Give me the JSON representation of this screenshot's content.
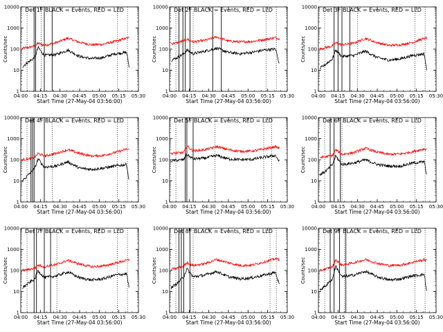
{
  "chart_data": {
    "type": "line",
    "layout": "3x3 grid of detector lightcurves",
    "x_ticks": [
      "04:00",
      "04:15",
      "04:30",
      "04:45",
      "05:00",
      "05:15",
      "05:30"
    ],
    "x_range_hours": [
      4.0,
      5.5
    ],
    "y_scale": "log",
    "ylim": [
      1,
      10000
    ],
    "y_ticks": [
      "1",
      "10",
      "100",
      "1000",
      "10000"
    ],
    "ylabel": "Counts/sec",
    "xlabel": "Start Time (27-May-04 03:56:00)",
    "series_colors": {
      "events": "#000000",
      "lld": "#ff0000"
    },
    "series_legend_text": "BLACK = Events, RED = LLD",
    "panels": [
      {
        "title": "Det 1F BLACK = Events, RED = LLD",
        "x": [
          4.02,
          4.1,
          4.18,
          4.22,
          4.3,
          4.45,
          4.6,
          4.75,
          4.9,
          5.05,
          5.2,
          5.35,
          5.38
        ],
        "events": [
          15,
          25,
          40,
          120,
          50,
          55,
          90,
          45,
          35,
          40,
          60,
          70,
          15
        ],
        "lld": [
          110,
          120,
          140,
          190,
          150,
          200,
          330,
          210,
          160,
          170,
          230,
          330,
          340
        ],
        "solid_markers": [
          4.17,
          4.19,
          4.3,
          4.4
        ],
        "dotted_markers": [
          4.08,
          4.26,
          5.23,
          5.36
        ]
      },
      {
        "title": "Det 2F BLACK = Events, RED = LLD",
        "x": [
          4.02,
          4.1,
          4.18,
          4.22,
          4.3,
          4.45,
          4.6,
          4.75,
          4.9,
          5.05,
          5.2,
          5.35,
          5.4
        ],
        "events": [
          30,
          40,
          60,
          90,
          60,
          80,
          110,
          70,
          60,
          70,
          90,
          100,
          20
        ],
        "lld": [
          180,
          200,
          250,
          300,
          220,
          260,
          380,
          240,
          220,
          230,
          280,
          350,
          300
        ],
        "solid_markers": [
          4.12,
          4.17,
          4.2,
          4.26,
          4.55,
          4.66
        ],
        "dotted_markers": [
          4.08,
          4.3,
          5.23,
          5.36
        ]
      },
      {
        "title": "Det 3F BLACK = Events, RED = LLD",
        "x": [
          4.02,
          4.1,
          4.18,
          4.22,
          4.3,
          4.45,
          4.6,
          4.75,
          4.9,
          5.05,
          5.2,
          5.35,
          5.38
        ],
        "events": [
          12,
          20,
          35,
          90,
          45,
          50,
          80,
          40,
          30,
          35,
          50,
          60,
          10
        ],
        "lld": [
          100,
          120,
          140,
          200,
          160,
          190,
          320,
          200,
          150,
          160,
          210,
          320,
          330
        ],
        "solid_markers": [
          4.2,
          4.25,
          4.3,
          4.4
        ],
        "dotted_markers": [
          4.08,
          4.5,
          5.23,
          5.36
        ]
      },
      {
        "title": "Det 4F BLACK = Events, RED = LLD",
        "x": [
          4.02,
          4.1,
          4.18,
          4.22,
          4.3,
          4.45,
          4.6,
          4.75,
          4.9,
          5.05,
          5.2,
          5.35,
          5.38
        ],
        "events": [
          10,
          20,
          40,
          110,
          45,
          50,
          80,
          40,
          35,
          40,
          50,
          60,
          10
        ],
        "lld": [
          100,
          110,
          130,
          200,
          150,
          200,
          300,
          200,
          150,
          160,
          220,
          320,
          300
        ],
        "solid_markers": [
          4.13,
          4.15,
          4.17,
          4.3
        ],
        "dotted_markers": [
          4.08,
          4.4,
          5.23,
          5.36
        ]
      },
      {
        "title": "Det 5F BLACK = Events, RED = LLD",
        "x": [
          4.02,
          4.1,
          4.18,
          4.22,
          4.3,
          4.45,
          4.6,
          4.75,
          4.9,
          5.05,
          5.2,
          5.35,
          5.4
        ],
        "events": [
          90,
          95,
          100,
          180,
          110,
          120,
          160,
          110,
          100,
          105,
          130,
          160,
          80
        ],
        "lld": [
          200,
          210,
          220,
          450,
          260,
          300,
          420,
          300,
          250,
          260,
          320,
          420,
          340
        ],
        "solid_markers": [
          4.2,
          4.22,
          4.3
        ],
        "dotted_markers": [
          4.08,
          4.58,
          5.2,
          5.3
        ]
      },
      {
        "title": "Det 6F BLACK = Events, RED = LLD",
        "x": [
          4.02,
          4.1,
          4.18,
          4.22,
          4.3,
          4.45,
          4.6,
          4.75,
          4.9,
          5.05,
          5.2,
          5.35,
          5.38
        ],
        "events": [
          20,
          30,
          60,
          150,
          60,
          70,
          100,
          60,
          50,
          50,
          70,
          80,
          20
        ],
        "lld": [
          130,
          140,
          160,
          300,
          180,
          220,
          350,
          230,
          180,
          190,
          240,
          330,
          320
        ],
        "solid_markers": [
          4.15,
          4.2,
          4.28
        ],
        "dotted_markers": [
          4.08,
          4.3,
          5.23,
          5.36
        ]
      },
      {
        "title": "Det 7F BLACK = Events, RED = LLD",
        "x": [
          4.02,
          4.1,
          4.18,
          4.22,
          4.3,
          4.45,
          4.6,
          4.75,
          4.9,
          5.05,
          5.2,
          5.35,
          5.38
        ],
        "events": [
          15,
          25,
          40,
          100,
          45,
          55,
          85,
          45,
          35,
          40,
          60,
          70,
          15
        ],
        "lld": [
          100,
          110,
          130,
          180,
          150,
          190,
          300,
          200,
          150,
          160,
          220,
          300,
          320
        ],
        "solid_markers": [
          4.17,
          4.2,
          4.3,
          4.38
        ],
        "dotted_markers": [
          4.08,
          4.46,
          5.23,
          5.36
        ]
      },
      {
        "title": "Det 8F BLACK = Events, RED = LLD",
        "x": [
          4.02,
          4.1,
          4.18,
          4.22,
          4.3,
          4.45,
          4.6,
          4.75,
          4.9,
          5.05,
          5.2,
          5.35,
          5.4
        ],
        "events": [
          15,
          25,
          50,
          120,
          50,
          60,
          90,
          50,
          40,
          45,
          60,
          80,
          20
        ],
        "lld": [
          110,
          130,
          160,
          240,
          170,
          210,
          330,
          230,
          170,
          180,
          250,
          360,
          330
        ],
        "solid_markers": [
          4.12,
          4.15,
          4.18,
          4.26
        ],
        "dotted_markers": [
          4.08,
          4.3,
          5.28,
          5.36
        ]
      },
      {
        "title": "Det 9F BLACK = Events, RED = LLD",
        "x": [
          4.02,
          4.1,
          4.18,
          4.22,
          4.3,
          4.45,
          4.6,
          4.75,
          4.9,
          5.05,
          5.2,
          5.35,
          5.38
        ],
        "events": [
          12,
          20,
          40,
          160,
          50,
          60,
          90,
          50,
          35,
          40,
          55,
          65,
          10
        ],
        "lld": [
          100,
          120,
          150,
          320,
          180,
          230,
          330,
          220,
          170,
          180,
          240,
          330,
          300
        ],
        "solid_markers": [
          4.15,
          4.2,
          4.27,
          4.35
        ],
        "dotted_markers": [
          4.08,
          4.33,
          5.23,
          5.36
        ]
      }
    ]
  }
}
